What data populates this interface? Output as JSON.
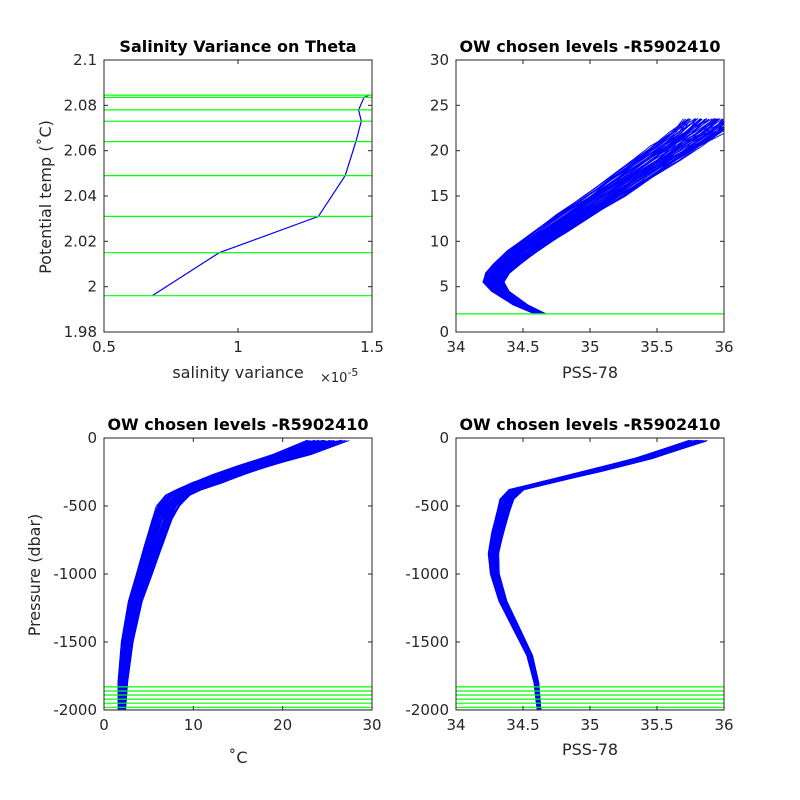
{
  "chart_data": [
    {
      "id": "p1",
      "type": "line",
      "title": "Salinity Variance on Theta",
      "xlabel": "salinity variance",
      "x_exponent_base": "×10",
      "x_exponent_power": "-5",
      "ylabel": "Potential temp (˚C)",
      "xlim": [
        0.5,
        1.5
      ],
      "ylim": [
        1.98,
        2.1
      ],
      "xticks": [
        0.5,
        1,
        1.5
      ],
      "xtick_labels": [
        "0.5",
        "1",
        "1.5"
      ],
      "yticks": [
        1.98,
        2,
        2.02,
        2.04,
        2.06,
        2.08,
        2.1
      ],
      "ytick_labels": [
        "1.98",
        "2",
        "2.02",
        "2.04",
        "2.06",
        "2.08",
        "2.1"
      ],
      "hlines": [
        1.996,
        2.015,
        2.031,
        2.049,
        2.064,
        2.073,
        2.078,
        2.0835,
        2.0845
      ],
      "series": [
        {
          "color": "#0000ff",
          "x": [
            0.68,
            0.93,
            1.3,
            1.4,
            1.44,
            1.46,
            1.45,
            1.47,
            1.49
          ],
          "y": [
            1.996,
            2.015,
            2.031,
            2.049,
            2.064,
            2.073,
            2.078,
            2.0835,
            2.0845
          ]
        }
      ]
    },
    {
      "id": "p2",
      "type": "line",
      "title": "OW chosen levels -R5902410",
      "xlabel": "PSS-78",
      "ylabel": "",
      "xlim": [
        34,
        36
      ],
      "ylim": [
        0,
        30
      ],
      "xticks": [
        34,
        34.5,
        35,
        35.5,
        36
      ],
      "xtick_labels": [
        "34",
        "34.5",
        "35",
        "35.5",
        "36"
      ],
      "yticks": [
        0,
        5,
        10,
        15,
        20,
        25,
        30
      ],
      "ytick_labels": [
        "0",
        "5",
        "10",
        "15",
        "20",
        "25",
        "30"
      ],
      "hlines": [
        2.0
      ],
      "profile_band": {
        "color": "#0000ff",
        "x": [
          34.63,
          34.48,
          34.33,
          34.28,
          34.31,
          34.38,
          34.5,
          34.7,
          34.9,
          35.1,
          35.3,
          35.5,
          35.65,
          35.8,
          35.92
        ],
        "y": [
          2.0,
          3.0,
          4.5,
          5.5,
          6.5,
          7.5,
          9.0,
          11.0,
          13.0,
          15.0,
          17.0,
          19.0,
          20.5,
          22.0,
          23.5
        ],
        "spread": 0.12
      }
    },
    {
      "id": "p3",
      "type": "line",
      "title": "OW chosen levels -R5902410",
      "xlabel": "˚C",
      "ylabel": "Pressure (dbar)",
      "xlim": [
        0,
        30
      ],
      "ylim": [
        -2000,
        0
      ],
      "xticks": [
        0,
        10,
        20,
        30
      ],
      "xtick_labels": [
        "0",
        "10",
        "20",
        "30"
      ],
      "yticks": [
        -2000,
        -1500,
        -1000,
        -500,
        0
      ],
      "ytick_labels": [
        "-2000",
        "-1500",
        "-1000",
        "-500",
        "0"
      ],
      "hlines": [
        -1830,
        -1860,
        -1890,
        -1920,
        -1950,
        -1980,
        -2000
      ],
      "profile_band": {
        "color": "#0000ff",
        "x": [
          2.0,
          2.1,
          2.6,
          3.5,
          4.5,
          5.5,
          6.5,
          7.2,
          8.2,
          9.5,
          11.5,
          14.0,
          17.0,
          21.0,
          25.0
        ],
        "y": [
          -2000,
          -1800,
          -1500,
          -1200,
          -1000,
          -800,
          -600,
          -500,
          -420,
          -380,
          -330,
          -270,
          -200,
          -120,
          -20
        ],
        "spread": 1.2
      }
    },
    {
      "id": "p4",
      "type": "line",
      "title": "OW chosen levels -R5902410",
      "xlabel": "PSS-78",
      "ylabel": "",
      "xlim": [
        34,
        36
      ],
      "ylim": [
        -2000,
        0
      ],
      "xticks": [
        34,
        34.5,
        35,
        35.5,
        36
      ],
      "xtick_labels": [
        "34",
        "34.5",
        "35",
        "35.5",
        "36"
      ],
      "yticks": [
        -2000,
        -1500,
        -1000,
        -500,
        0
      ],
      "ytick_labels": [
        "-2000",
        "-1500",
        "-1000",
        "-500",
        "0"
      ],
      "hlines": [
        -1830,
        -1860,
        -1890,
        -1920,
        -1950,
        -1980,
        -2000
      ],
      "profile_band": {
        "color": "#0000ff",
        "x": [
          34.62,
          34.6,
          34.55,
          34.45,
          34.35,
          34.29,
          34.28,
          34.31,
          34.35,
          34.38,
          34.45,
          34.7,
          35.0,
          35.4,
          35.8
        ],
        "y": [
          -2000,
          -1800,
          -1600,
          -1400,
          -1200,
          -1000,
          -850,
          -700,
          -550,
          -450,
          -380,
          -320,
          -250,
          -150,
          -20
        ],
        "spread": 0.04
      }
    }
  ],
  "colors": {
    "axes": "#262626",
    "profile": "#0000ff",
    "levels": "#00ff00"
  }
}
